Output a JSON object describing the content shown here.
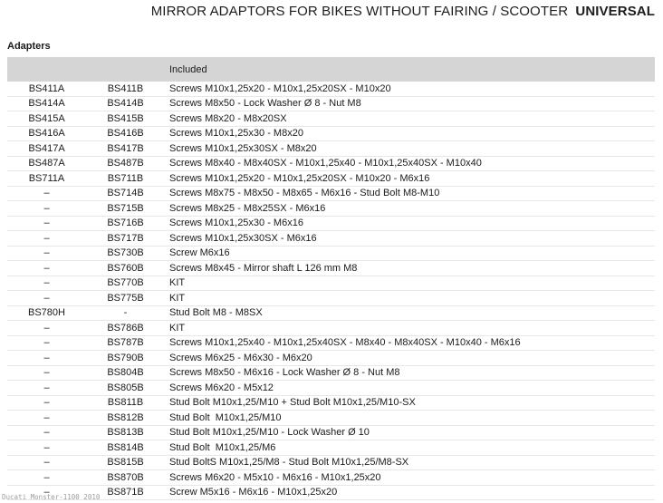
{
  "title": {
    "main": "MIRROR ADAPTORS FOR BIKES WITHOUT FAIRING / SCOOTER",
    "emphasis": "UNIVERSAL"
  },
  "section_label": "Adapters",
  "table": {
    "header": {
      "col_a_icon": "light-square",
      "col_b_icon": "dark-square",
      "included_label": "Included"
    },
    "rows": [
      {
        "a": "BS411A",
        "b": "BS411B",
        "included": "Screws M10x1,25x20 - M10x1,25x20SX - M10x20"
      },
      {
        "a": "BS414A",
        "b": "BS414B",
        "included": "Screws M8x50 - Lock Washer Ø 8 - Nut M8"
      },
      {
        "a": "BS415A",
        "b": "BS415B",
        "included": "Screws M8x20 - M8x20SX"
      },
      {
        "a": "BS416A",
        "b": "BS416B",
        "included": "Screws M10x1,25x30 - M8x20"
      },
      {
        "a": "BS417A",
        "b": "BS417B",
        "included": "Screws M10x1,25x30SX - M8x20"
      },
      {
        "a": "BS487A",
        "b": "BS487B",
        "included": "Screws M8x40 - M8x40SX - M10x1,25x40 - M10x1,25x40SX - M10x40"
      },
      {
        "a": "BS711A",
        "b": "BS711B",
        "included": "Screws M10x1,25x20 - M10x1,25x20SX - M10x20 - M6x16"
      },
      {
        "a": "–",
        "b": "BS714B",
        "included": "Screws M8x75 - M8x50 - M8x65 - M6x16 - Stud Bolt M8-M10"
      },
      {
        "a": "–",
        "b": "BS715B",
        "included": "Screws M8x25 - M8x25SX - M6x16"
      },
      {
        "a": "–",
        "b": "BS716B",
        "included": "Screws M10x1,25x30 - M6x16"
      },
      {
        "a": "–",
        "b": "BS717B",
        "included": "Screws M10x1,25x30SX - M6x16"
      },
      {
        "a": "–",
        "b": "BS730B",
        "included": "Screw M6x16"
      },
      {
        "a": "–",
        "b": "BS760B",
        "included": "Screws M8x45 - Mirror shaft L 126 mm M8"
      },
      {
        "a": "–",
        "b": "BS770B",
        "included": "KIT"
      },
      {
        "a": "–",
        "b": "BS775B",
        "included": "KIT"
      },
      {
        "a": "BS780H",
        "b": "-",
        "included": "Stud Bolt M8 - M8SX"
      },
      {
        "a": "–",
        "b": "BS786B",
        "included": "KIT"
      },
      {
        "a": "–",
        "b": "BS787B",
        "included": "Screws M10x1,25x40 - M10x1,25x40SX - M8x40 - M8x40SX - M10x40 - M6x16"
      },
      {
        "a": "–",
        "b": "BS790B",
        "included": "Screws M6x25 - M6x30 - M6x20"
      },
      {
        "a": "–",
        "b": "BS804B",
        "included": "Screws M8x50 - M6x16 - Lock Washer Ø 8 - Nut M8"
      },
      {
        "a": "–",
        "b": "BS805B",
        "included": "Screws M6x20 - M5x12"
      },
      {
        "a": "–",
        "b": "BS811B",
        "included": "Stud Bolt M10x1,25/M10 + Stud Bolt M10x1,25/M10-SX"
      },
      {
        "a": "–",
        "b": "BS812B",
        "included": "Stud Bolt  M10x1,25/M10"
      },
      {
        "a": "–",
        "b": "BS813B",
        "included": "Stud Bolt M10x1,25/M10 - Lock Washer Ø 10"
      },
      {
        "a": "–",
        "b": "BS814B",
        "included": "Stud Bolt  M10x1,25/M6"
      },
      {
        "a": "–",
        "b": "BS815B",
        "included": "Stud BoltS M10x1,25/M8 - Stud Bolt M10x1,25/M8-SX"
      },
      {
        "a": "–",
        "b": "BS870B",
        "included": "Screws M6x20 - M5x10 - M6x16 - M10x1,25x20"
      },
      {
        "a": "–",
        "b": "BS871B",
        "included": "Screw M5x16 - M6x16 - M10x1,25x20"
      }
    ]
  },
  "watermark": "Ducati Monster-1100 2010",
  "colors": {
    "header_bg": "#d5d5d5",
    "row_border": "#e7e7e7",
    "text": "#1b1b1b",
    "light_square": "#ededed",
    "dark_square": "#161616",
    "watermark": "#9d9d9d"
  }
}
